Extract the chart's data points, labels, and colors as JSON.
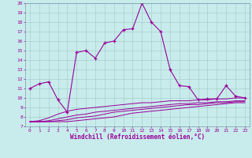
{
  "xlabel": "Windchill (Refroidissement éolien,°C)",
  "background_color": "#c8ecec",
  "line_color": "#990099",
  "xlim": [
    -0.5,
    23.5
  ],
  "ylim": [
    7,
    20
  ],
  "xticks": [
    0,
    1,
    2,
    3,
    4,
    5,
    6,
    7,
    8,
    9,
    10,
    11,
    12,
    13,
    14,
    15,
    16,
    17,
    18,
    19,
    20,
    21,
    22,
    23
  ],
  "yticks": [
    7,
    8,
    9,
    10,
    11,
    12,
    13,
    14,
    15,
    16,
    17,
    18,
    19,
    20
  ],
  "temperature": [
    11,
    11.5,
    11.7,
    9.8,
    8.5,
    14.8,
    15.0,
    14.2,
    15.8,
    16.0,
    17.2,
    17.3,
    20.0,
    18.0,
    17.0,
    13.0,
    11.3,
    11.2,
    9.8,
    9.9,
    9.9,
    11.3,
    10.2,
    10.0
  ],
  "line2": [
    7.5,
    7.5,
    7.5,
    7.5,
    7.5,
    7.6,
    7.7,
    7.8,
    7.9,
    8.0,
    8.2,
    8.4,
    8.5,
    8.6,
    8.7,
    8.8,
    8.9,
    9.0,
    9.1,
    9.2,
    9.3,
    9.4,
    9.5,
    9.5
  ],
  "line3": [
    7.5,
    7.5,
    7.5,
    7.6,
    7.7,
    7.9,
    8.0,
    8.1,
    8.3,
    8.5,
    8.6,
    8.7,
    8.8,
    8.9,
    9.0,
    9.1,
    9.2,
    9.3,
    9.3,
    9.4,
    9.5,
    9.5,
    9.6,
    9.6
  ],
  "line4": [
    7.5,
    7.5,
    7.6,
    7.8,
    8.0,
    8.2,
    8.3,
    8.5,
    8.6,
    8.7,
    8.8,
    8.9,
    9.0,
    9.1,
    9.2,
    9.3,
    9.4,
    9.4,
    9.5,
    9.5,
    9.6,
    9.6,
    9.7,
    9.7
  ],
  "line5": [
    7.5,
    7.6,
    7.9,
    8.3,
    8.6,
    8.8,
    8.9,
    9.0,
    9.1,
    9.2,
    9.3,
    9.4,
    9.5,
    9.5,
    9.6,
    9.7,
    9.7,
    9.7,
    9.8,
    9.8,
    9.9,
    9.9,
    10.0,
    10.0
  ]
}
